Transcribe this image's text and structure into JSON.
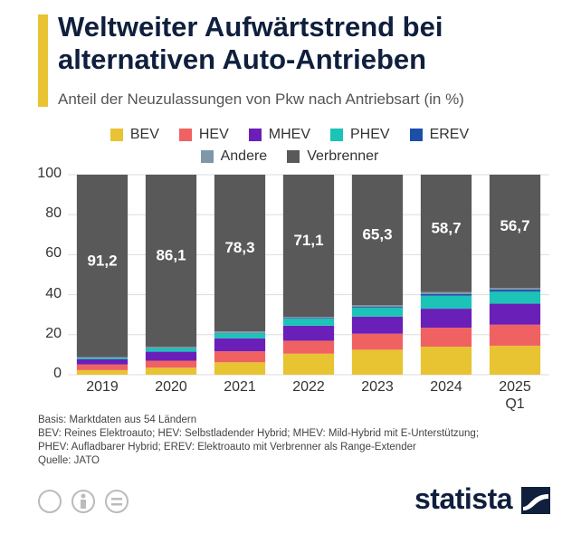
{
  "chart_data": {
    "type": "stacked_bar",
    "title": "Weltweiter Aufwärtstrend bei alternativen Auto-Antrieben",
    "subtitle": "Anteil der Neuzulassungen von Pkw nach Antriebsart (in %)",
    "categories": [
      "2019",
      "2020",
      "2021",
      "2022",
      "2023",
      "2024",
      "2025\nQ1"
    ],
    "series": [
      {
        "name": "BEV",
        "color": "#e8c332",
        "values": [
          2.3,
          3.5,
          6.2,
          10.5,
          12.5,
          14,
          14.5
        ]
      },
      {
        "name": "HEV",
        "color": "#f06262",
        "values": [
          2.8,
          3.5,
          5.5,
          6.5,
          8,
          9.5,
          10.5
        ]
      },
      {
        "name": "MHEV",
        "color": "#6a1fb8",
        "values": [
          2.6,
          4.5,
          6.5,
          7.5,
          8.5,
          9.5,
          10.5
        ]
      },
      {
        "name": "PHEV",
        "color": "#1cc3b7",
        "values": [
          0.7,
          1.8,
          2.5,
          3.5,
          4.5,
          6.5,
          6
        ]
      },
      {
        "name": "EREV",
        "color": "#1d4fa8",
        "values": [
          0.1,
          0.2,
          0.2,
          0.3,
          0.4,
          0.8,
          1
        ]
      },
      {
        "name": "Andere",
        "color": "#7f97a8",
        "values": [
          0.3,
          0.4,
          0.8,
          0.6,
          0.8,
          1,
          0.8
        ]
      },
      {
        "name": "Verbrenner",
        "color": "#595959",
        "values": [
          91.2,
          86.1,
          78.3,
          71.1,
          65.3,
          58.7,
          56.7
        ],
        "value_labels": [
          "91,2",
          "86,1",
          "78,3",
          "71,1",
          "65,3",
          "58,7",
          "56,7"
        ]
      }
    ],
    "ylim": [
      0,
      100
    ],
    "yticks": [
      0,
      20,
      40,
      60,
      80,
      100
    ],
    "grid": true,
    "notes": [
      "Basis: Marktdaten aus 54 Ländern",
      "BEV: Reines Elektroauto; HEV: Selbstladender Hybrid; MHEV: Mild-Hybrid mit E-Unterstützung;",
      "PHEV: Aufladbarer Hybrid; EREV: Elektroauto mit Verbrenner als Range-Extender",
      "Quelle: JATO"
    ],
    "logo": "statista"
  }
}
